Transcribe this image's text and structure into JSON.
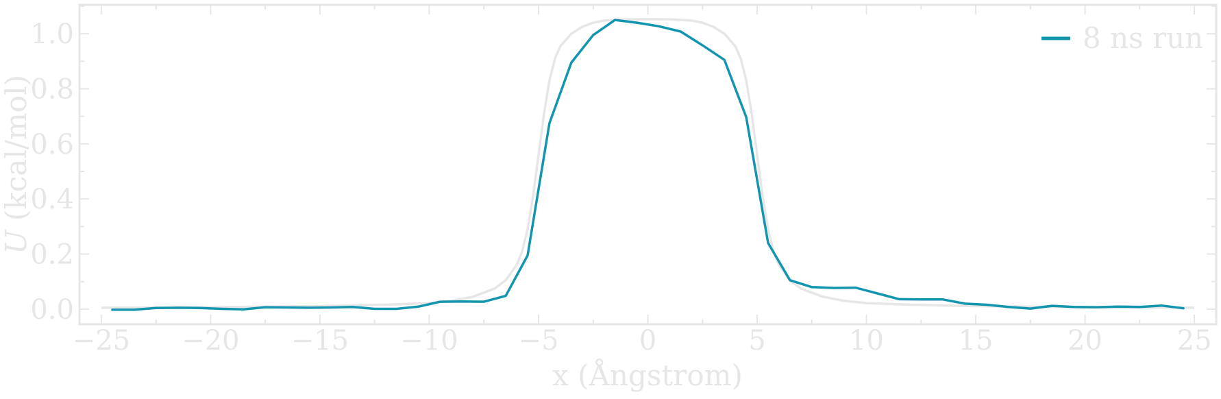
{
  "chart_data": {
    "type": "line",
    "title": "",
    "xlabel": "x (Ångstrom)",
    "ylabel_italic": "U",
    "ylabel_rest": " (kcal/mol)",
    "xlim": [
      -26,
      26
    ],
    "ylim": [
      -0.055,
      1.105
    ],
    "xticks": [
      -25,
      -20,
      -15,
      -10,
      -5,
      0,
      5,
      10,
      15,
      20,
      25
    ],
    "xtick_labels": [
      "−25",
      "−20",
      "−15",
      "−10",
      "−5",
      "0",
      "5",
      "10",
      "15",
      "20",
      "25"
    ],
    "yticks": [
      0.0,
      0.2,
      0.4,
      0.6,
      0.8,
      1.0
    ],
    "ytick_labels": [
      "0.0",
      "0.2",
      "0.4",
      "0.6",
      "0.8",
      "1.0"
    ],
    "legend_position": "top-right",
    "grid": false,
    "reference": {
      "color": "#e6e6e6",
      "x": [
        -25,
        -20,
        -15,
        -12,
        -10,
        -9,
        -8,
        -7,
        -6.5,
        -6,
        -5.75,
        -5.5,
        -5.25,
        -5,
        -4.75,
        -4.5,
        -4.25,
        -4,
        -3.5,
        -3,
        -2.5,
        -2,
        -1,
        0,
        1,
        2,
        2.5,
        3,
        3.5,
        4,
        4.25,
        4.5,
        4.75,
        5,
        5.25,
        5.5,
        5.75,
        6,
        6.5,
        7,
        8,
        9,
        10,
        12,
        15,
        20,
        25
      ],
      "y": [
        0.005,
        0.007,
        0.011,
        0.016,
        0.022,
        0.03,
        0.045,
        0.075,
        0.105,
        0.16,
        0.21,
        0.29,
        0.41,
        0.56,
        0.71,
        0.83,
        0.91,
        0.955,
        1.0,
        1.025,
        1.04,
        1.048,
        1.052,
        1.053,
        1.052,
        1.048,
        1.04,
        1.025,
        1.0,
        0.955,
        0.91,
        0.83,
        0.71,
        0.56,
        0.41,
        0.29,
        0.21,
        0.16,
        0.105,
        0.075,
        0.045,
        0.03,
        0.022,
        0.016,
        0.011,
        0.007,
        0.005
      ]
    },
    "series": [
      {
        "name": "8 ns run",
        "color": "#1395b0",
        "x": [
          -24.5,
          -23.5,
          -22.5,
          -21.5,
          -20.5,
          -19.5,
          -18.5,
          -17.5,
          -16.5,
          -15.5,
          -14.5,
          -13.5,
          -12.5,
          -11.5,
          -10.5,
          -9.5,
          -8.5,
          -7.5,
          -6.5,
          -5.5,
          -4.5,
          -3.5,
          -2.5,
          -1.5,
          -0.5,
          0.5,
          1.5,
          2.5,
          3.5,
          4.5,
          5.5,
          6.5,
          7.5,
          8.5,
          9.5,
          10.5,
          11.5,
          12.5,
          13.5,
          14.5,
          15.5,
          16.5,
          17.5,
          18.5,
          19.5,
          20.5,
          21.5,
          22.5,
          23.5,
          24.5
        ],
        "y": [
          -0.002,
          -0.002,
          0.004,
          0.005,
          0.004,
          0.001,
          -0.001,
          0.007,
          0.006,
          0.005,
          0.006,
          0.008,
          0.001,
          0.001,
          0.009,
          0.027,
          0.028,
          0.027,
          0.048,
          0.195,
          0.675,
          0.895,
          0.995,
          1.05,
          1.04,
          1.027,
          1.008,
          0.958,
          0.905,
          0.697,
          0.24,
          0.105,
          0.08,
          0.077,
          0.078,
          0.057,
          0.036,
          0.035,
          0.035,
          0.02,
          0.016,
          0.008,
          0.002,
          0.012,
          0.008,
          0.007,
          0.009,
          0.008,
          0.013,
          0.003
        ]
      }
    ]
  }
}
